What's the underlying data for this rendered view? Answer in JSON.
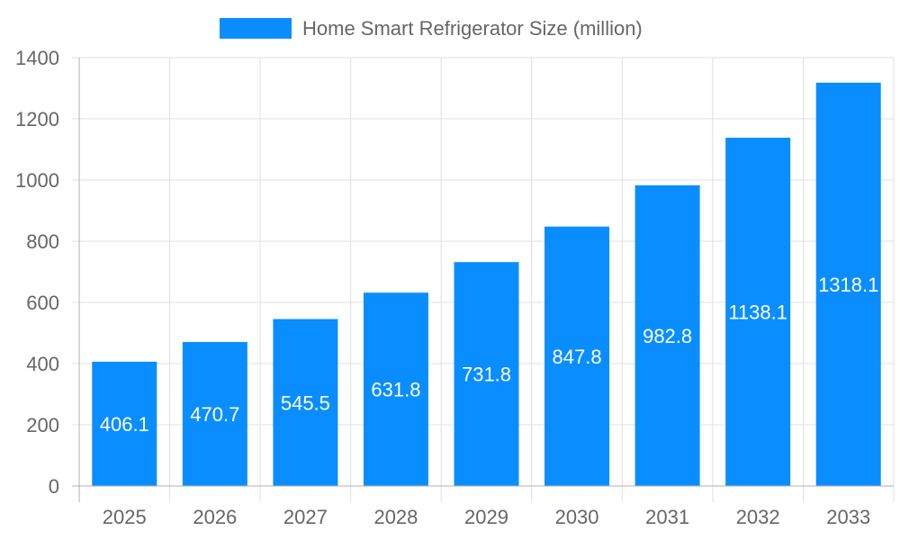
{
  "chart_data": {
    "type": "bar",
    "title": "",
    "xlabel": "",
    "ylabel": "",
    "categories": [
      "2025",
      "2026",
      "2027",
      "2028",
      "2029",
      "2030",
      "2031",
      "2032",
      "2033"
    ],
    "series": [
      {
        "name": "Home Smart Refrigerator Size (million)",
        "values": [
          406.1,
          470.7,
          545.5,
          631.8,
          731.8,
          847.8,
          982.8,
          1138.1,
          1318.1
        ],
        "labels": [
          "406.1",
          "470.7",
          "545.5",
          "631.8",
          "731.8",
          "847.8",
          "982.8",
          "1138.1",
          "1318.1"
        ],
        "color": "#0a8eff"
      }
    ],
    "ylim": [
      0,
      1400
    ],
    "yticks": [
      "0",
      "200",
      "400",
      "600",
      "800",
      "1000",
      "1200",
      "1400"
    ],
    "grid": true,
    "legend": "top-center",
    "colors": {
      "grid": "#e0e0e0",
      "axis": "#b0b0b0",
      "text": "#666666",
      "data_label": "#ffffff"
    }
  }
}
